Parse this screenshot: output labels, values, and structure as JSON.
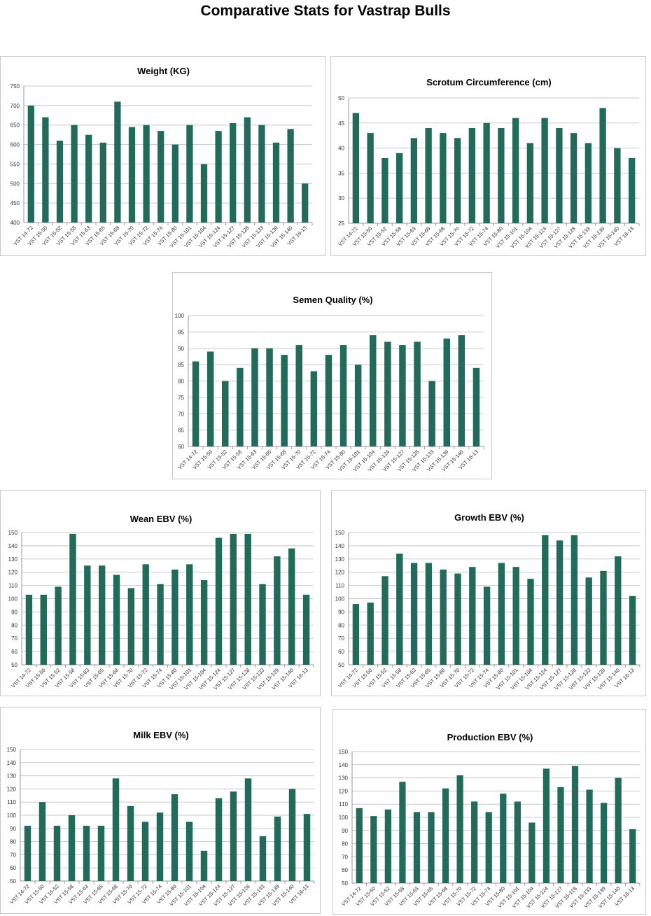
{
  "page_title": "Comparative Stats for Vastrap Bulls",
  "bar_color": "#226b5b",
  "chart_data": [
    {
      "type": "bar",
      "title": "Weight (KG)",
      "ylim": [
        400,
        750
      ],
      "ystep": 50,
      "grid": true,
      "categories": [
        "VST 14-72",
        "VST 15-50",
        "VST 15-52",
        "VST 15-58",
        "VST 15-63",
        "VST 15-65",
        "VST 15-68",
        "VST 15-70",
        "VST 15-72",
        "VST 15-74",
        "VST 15-80",
        "VST 15-101",
        "VST 15-104",
        "VST 15-124",
        "VST 15-127",
        "VST 15-128",
        "VST 15-133",
        "VST 15-139",
        "VST 15-140",
        "VST 16-13"
      ],
      "values": [
        700,
        670,
        610,
        650,
        625,
        605,
        710,
        645,
        650,
        635,
        600,
        650,
        550,
        635,
        655,
        670,
        650,
        605,
        640,
        500
      ]
    },
    {
      "type": "bar",
      "title": "Scrotum Circumference (cm)",
      "ylim": [
        25,
        50
      ],
      "ystep": 5,
      "grid": true,
      "categories": [
        "VST 14-72",
        "VST 15-50",
        "VST 15-52",
        "VST 15-58",
        "VST 15-63",
        "VST 15-65",
        "VST 15-68",
        "VST 15-70",
        "VST 15-72",
        "VST 15-74",
        "VST 15-80",
        "VST 15-101",
        "VST 15-104",
        "VST 15-124",
        "VST 15-127",
        "VST 15-128",
        "VST 15-133",
        "VST 15-139",
        "VST 15-140",
        "VST 16-13"
      ],
      "values": [
        47,
        43,
        38,
        39,
        42,
        44,
        43,
        42,
        44,
        45,
        44,
        46,
        41,
        46,
        44,
        43,
        41,
        48,
        40,
        38
      ]
    },
    {
      "type": "bar",
      "title": "Semen Quality (%)",
      "ylim": [
        60,
        100
      ],
      "ystep": 5,
      "grid": true,
      "categories": [
        "VST 14-72",
        "VST 15-50",
        "VST 15-52",
        "VST 15-58",
        "VST 15-63",
        "VST 15-65",
        "VST 15-68",
        "VST 15-70",
        "VST 15-72",
        "VST 15-74",
        "VST 15-80",
        "VST 15-101",
        "VST 15-104",
        "VST 15-124",
        "VST 15-127",
        "VST 15-128",
        "VST 15-133",
        "VST 15-139",
        "VST 15-140",
        "VST 16-13"
      ],
      "values": [
        86,
        89,
        80,
        84,
        90,
        90,
        88,
        91,
        83,
        88,
        91,
        85,
        94,
        92,
        91,
        92,
        80,
        93,
        94,
        84
      ]
    },
    {
      "type": "bar",
      "title": "Wean EBV (%)",
      "ylim": [
        50,
        150
      ],
      "ystep": 10,
      "grid": true,
      "categories": [
        "VST 14-72",
        "VST 15-50",
        "VST 15-52",
        "VST 15-58",
        "VST 15-63",
        "VST 15-65",
        "VST 15-68",
        "VST 15-70",
        "VST 15-72",
        "VST 15-74",
        "VST 15-80",
        "VST 15-101",
        "VST 15-104",
        "VST 15-124",
        "VST 15-127",
        "VST 15-128",
        "VST 15-133",
        "VST 15-139",
        "VST 15-140",
        "VST 16-13"
      ],
      "values": [
        103,
        103,
        109,
        149,
        125,
        125,
        118,
        108,
        126,
        111,
        122,
        126,
        114,
        146,
        149,
        149,
        111,
        132,
        138,
        103
      ]
    },
    {
      "type": "bar",
      "title": "Growth EBV (%)",
      "ylim": [
        50,
        150
      ],
      "ystep": 10,
      "grid": true,
      "categories": [
        "VST 14-72",
        "VST 15-50",
        "VST 15-52",
        "VST 15-58",
        "VST 15-63",
        "VST 15-65",
        "VST 15-68",
        "VST 15-70",
        "VST 15-72",
        "VST 15-74",
        "VST 15-80",
        "VST 15-101",
        "VST 15-104",
        "VST 15-124",
        "VST 15-127",
        "VST 15-128",
        "VST 15-133",
        "VST 15-139",
        "VST 15-140",
        "VST 16-13"
      ],
      "values": [
        96,
        97,
        117,
        134,
        127,
        127,
        122,
        119,
        124,
        109,
        127,
        124,
        115,
        148,
        144,
        148,
        116,
        121,
        132,
        102
      ]
    },
    {
      "type": "bar",
      "title": "Milk EBV (%)",
      "ylim": [
        50,
        150
      ],
      "ystep": 10,
      "grid": true,
      "categories": [
        "VST 14-72",
        "VST 15-50",
        "VST 15-52",
        "VST 15-58",
        "VST 15-63",
        "VST 15-65",
        "VST 15-68",
        "VST 15-70",
        "VST 15-72",
        "VST 15-74",
        "VST 15-80",
        "VST 15-101",
        "VST 15-104",
        "VST 15-124",
        "VST 15-127",
        "VST 15-128",
        "VST 15-133",
        "VST 15-139",
        "VST 15-140",
        "VST 16-13"
      ],
      "values": [
        92,
        110,
        92,
        100,
        92,
        92,
        128,
        107,
        95,
        102,
        116,
        95,
        73,
        113,
        118,
        128,
        84,
        99,
        120,
        101
      ]
    },
    {
      "type": "bar",
      "title": "Production EBV (%)",
      "ylim": [
        50,
        150
      ],
      "ystep": 10,
      "grid": true,
      "categories": [
        "VST 14-72",
        "VST 15-50",
        "VST 15-52",
        "VST 15-58",
        "VST 15-63",
        "VST 15-65",
        "VST 15-68",
        "VST 15-70",
        "VST 15-72",
        "VST 15-74",
        "VST 15-80",
        "VST 15-101",
        "VST 15-104",
        "VST 15-124",
        "VST 15-127",
        "VST 15-128",
        "VST 15-133",
        "VST 15-139",
        "VST 15-140",
        "VST 16-13"
      ],
      "values": [
        107,
        101,
        106,
        127,
        104,
        104,
        122,
        132,
        112,
        104,
        118,
        112,
        96,
        137,
        123,
        139,
        121,
        111,
        130,
        91
      ]
    }
  ]
}
